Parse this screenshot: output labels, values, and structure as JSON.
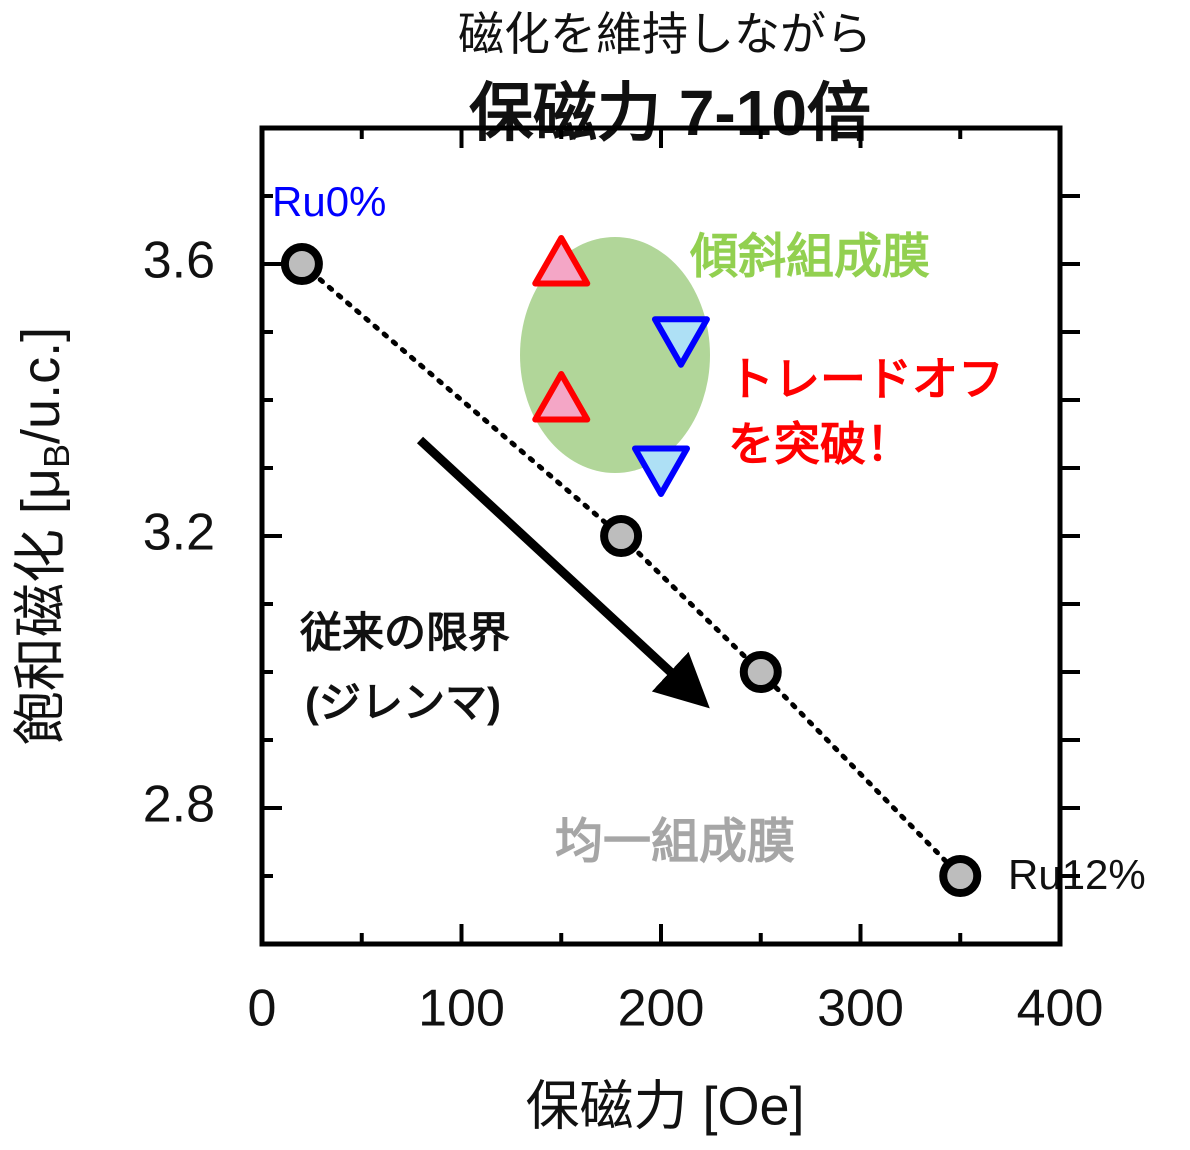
{
  "chart_data": {
    "type": "scatter",
    "title": "磁化を維持しながら",
    "subtitle": "保磁力 7-10倍",
    "x_label": "保磁力 [Oe]",
    "y_label_parts": [
      "飽和磁化 [μ",
      "B",
      "/u.c.]"
    ],
    "xlim": [
      0,
      400
    ],
    "ylim": [
      2.6,
      3.8
    ],
    "xticks": [
      0,
      100,
      200,
      300,
      400
    ],
    "x_minor_ticks": [
      50,
      150,
      250,
      350
    ],
    "yticks": [
      2.8,
      3.2,
      3.6
    ],
    "y_minor_ticks": [
      2.7,
      2.9,
      3.0,
      3.1,
      3.3,
      3.4,
      3.5,
      3.7
    ],
    "series": [
      {
        "marker": "circle",
        "color": "#bdbdbd",
        "line": "dotted",
        "x": [
          20,
          180,
          250,
          350
        ],
        "values": [
          3.6,
          3.2,
          3.0,
          2.7
        ]
      },
      {
        "marker": "triangle-up",
        "color": "#f4a6c6",
        "edge": "#ff0000",
        "x": [
          150,
          150
        ],
        "values": [
          3.6,
          3.4
        ]
      },
      {
        "marker": "triangle-down",
        "color": "#aee0f5",
        "edge": "#0000ff",
        "x": [
          210,
          200
        ],
        "values": [
          3.49,
          3.3
        ]
      }
    ],
    "annotations": [
      "Ru0%",
      "Ru12%",
      "傾斜組成膜",
      "トレードオフ",
      "を突破！",
      "従来の限界",
      "(ジレンマ)",
      "均一組成膜"
    ]
  }
}
